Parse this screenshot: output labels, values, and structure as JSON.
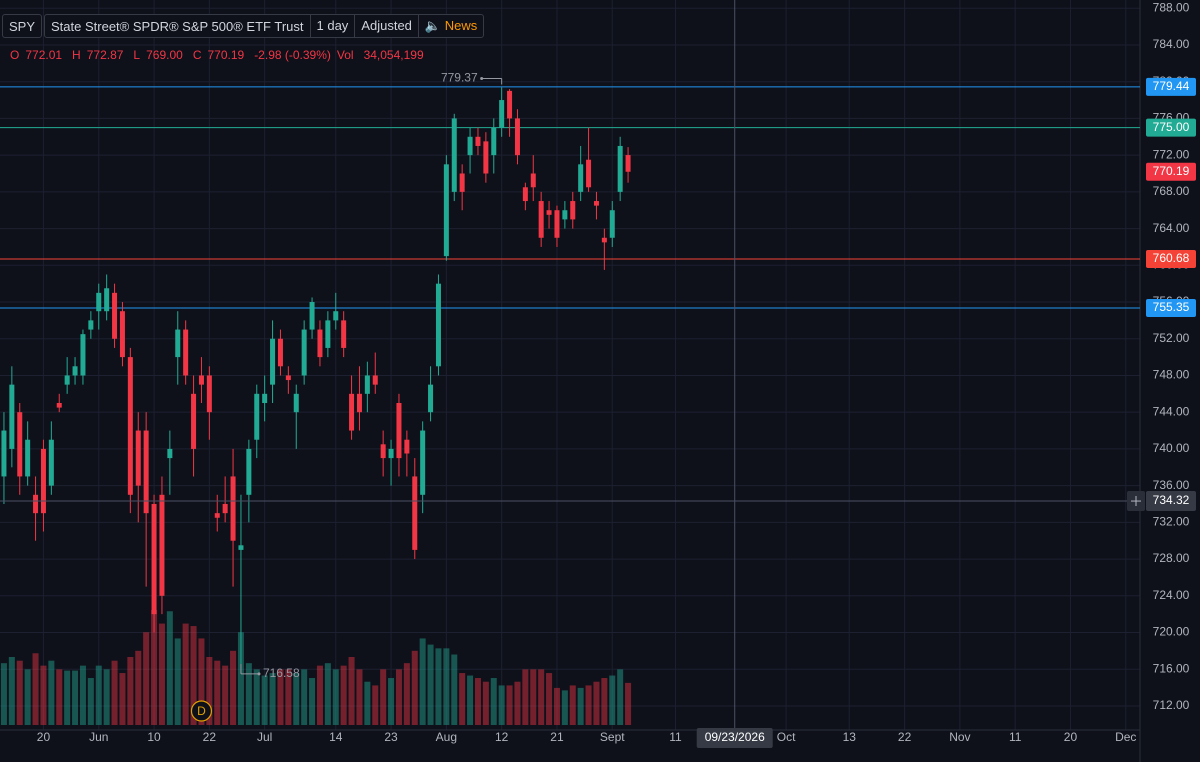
{
  "chart_data": {
    "type": "candlestick",
    "header": {
      "symbol": "SPY",
      "name": "State Street® SPDR® S&P 500® ETF Trust",
      "interval": "1 day",
      "adjustment": "Adjusted",
      "news": "News",
      "legend": [
        "O",
        "772.01",
        "H",
        "772.87",
        "L",
        "769.00",
        "C",
        "770.19",
        "-2.98 (-0.39%)",
        "Vol",
        "34,054,199"
      ]
    },
    "x": [
      0,
      1,
      2,
      3,
      4,
      5,
      6,
      7,
      8,
      9,
      10,
      11,
      12,
      13,
      14,
      15,
      16,
      17,
      18,
      19,
      20,
      21,
      22,
      23,
      24,
      25,
      26,
      27,
      28,
      29,
      30,
      31,
      32,
      33,
      34,
      35,
      36,
      37,
      38,
      39,
      40,
      41,
      42,
      43,
      44,
      45,
      46,
      47,
      48,
      49,
      50,
      51,
      52,
      53,
      54,
      55,
      56,
      57,
      58,
      59,
      60,
      61,
      62,
      63,
      64,
      65,
      66,
      67,
      68,
      69,
      70,
      71,
      72,
      73,
      74,
      75,
      76,
      77,
      78,
      79
    ],
    "open": [
      737,
      740,
      744,
      737,
      735,
      740,
      736,
      745,
      747,
      748,
      748,
      753,
      755,
      755,
      757,
      755,
      750,
      742,
      742,
      734,
      735,
      739,
      750,
      753,
      746,
      748,
      748,
      733,
      734,
      737,
      729,
      735,
      741,
      745,
      747,
      752,
      748,
      744,
      748,
      753,
      753,
      751,
      754,
      754,
      746,
      746,
      746,
      748,
      740.5,
      739,
      745,
      741,
      737,
      735,
      744,
      749,
      761,
      768,
      770,
      772,
      774,
      773.5,
      772,
      775,
      779,
      776,
      768.5,
      770,
      767,
      766,
      766,
      765,
      767,
      768,
      771.5,
      767,
      763,
      763,
      768,
      772.01
    ],
    "high": [
      744,
      749,
      745,
      743,
      737,
      741,
      743,
      746,
      750,
      750,
      753,
      755,
      758,
      759,
      758,
      756,
      751,
      744,
      744,
      735,
      737,
      742,
      755,
      754,
      748,
      750,
      749,
      735,
      737,
      740,
      735,
      741,
      747,
      748,
      754,
      753,
      749,
      747,
      754,
      756.5,
      754,
      755,
      757,
      755,
      748,
      749,
      749.5,
      750.5,
      742,
      741,
      746,
      742,
      739,
      743,
      749,
      759,
      772,
      776.5,
      771,
      775,
      775,
      774.5,
      776,
      779.37,
      779.2,
      777,
      769,
      772,
      768,
      767,
      766.5,
      767,
      768,
      773,
      775,
      768,
      764,
      767,
      774,
      772.87
    ],
    "low": [
      734,
      738,
      735,
      736,
      730,
      731,
      735,
      744,
      746,
      747,
      747,
      752,
      753,
      754,
      751,
      749,
      733,
      732,
      725,
      720,
      722,
      735,
      747,
      747,
      737,
      745,
      741,
      731,
      732,
      725,
      716.58,
      732,
      739,
      743,
      745,
      748,
      746,
      740,
      747,
      752,
      749,
      750,
      753,
      750,
      741,
      742,
      744,
      746,
      737,
      736,
      737,
      737,
      728,
      733,
      743,
      748,
      760.5,
      767,
      766,
      770,
      772,
      769,
      770,
      774,
      774,
      771,
      766,
      767,
      762,
      764,
      762,
      764,
      764,
      767,
      768,
      765,
      759.5,
      762,
      767,
      769
    ],
    "close": [
      742,
      747,
      737,
      741,
      733,
      733,
      741,
      744.5,
      748,
      749,
      752.5,
      754,
      757,
      757.5,
      752,
      750,
      735,
      736,
      733,
      722,
      724,
      740,
      753,
      748,
      740,
      747,
      744,
      732.5,
      733,
      730,
      729.5,
      740,
      746,
      746,
      752,
      749,
      747.5,
      746,
      753,
      756,
      750,
      754,
      755,
      751,
      742,
      744,
      748,
      747,
      739,
      740,
      739,
      739.5,
      729,
      742,
      747,
      758,
      771,
      776,
      768,
      774,
      773,
      770,
      775,
      778,
      776,
      772,
      767,
      768.5,
      763,
      765.5,
      763,
      766,
      765,
      771,
      768.5,
      766.5,
      762.5,
      766,
      773,
      770.19
    ],
    "volume": [
      50000000,
      55000000,
      52000000,
      45000000,
      58000000,
      48000000,
      52000000,
      45000000,
      44000000,
      44000000,
      48000000,
      38000000,
      48000000,
      45000000,
      52000000,
      42000000,
      55000000,
      60000000,
      75000000,
      93000000,
      82000000,
      92000000,
      70000000,
      82000000,
      80000000,
      70000000,
      55000000,
      52000000,
      48000000,
      60000000,
      75000000,
      50000000,
      45000000,
      40000000,
      42000000,
      45000000,
      45000000,
      42000000,
      45000000,
      38000000,
      48000000,
      50000000,
      45000000,
      48000000,
      55000000,
      45000000,
      35000000,
      32000000,
      45000000,
      38000000,
      45000000,
      50000000,
      60000000,
      70000000,
      65000000,
      62000000,
      62000000,
      57000000,
      42000000,
      40000000,
      38000000,
      35000000,
      38000000,
      32000000,
      32000000,
      35000000,
      45000000,
      45000000,
      45000000,
      42000000,
      30000000,
      28000000,
      32000000,
      30000000,
      32000000,
      35000000,
      38000000,
      40000000,
      45000000,
      34054199
    ],
    "up_color": "#22ab94",
    "down_color": "#f23645",
    "xlim": [
      -0.5,
      143.8
    ],
    "ylim": [
      709.38,
      788.9
    ],
    "xticks": [
      {
        "value": 5,
        "label": "20"
      },
      {
        "value": 12,
        "label": "Jun"
      },
      {
        "value": 19,
        "label": "10"
      },
      {
        "value": 26,
        "label": "22"
      },
      {
        "value": 33,
        "label": "Jul"
      },
      {
        "value": 42,
        "label": "14"
      },
      {
        "value": 49,
        "label": "23"
      },
      {
        "value": 56,
        "label": "Aug"
      },
      {
        "value": 63,
        "label": "12"
      },
      {
        "value": 70,
        "label": "21"
      },
      {
        "value": 77,
        "label": "Sept"
      },
      {
        "value": 85,
        "label": "11"
      },
      {
        "value": 99,
        "label": "Oct"
      },
      {
        "value": 107,
        "label": "13"
      },
      {
        "value": 114,
        "label": "22"
      },
      {
        "value": 121,
        "label": "Nov"
      },
      {
        "value": 128,
        "label": "11"
      },
      {
        "value": 135,
        "label": "20"
      },
      {
        "value": 142,
        "label": "Dec"
      }
    ],
    "yticks": [
      {
        "value": 712,
        "label": "712.00"
      },
      {
        "value": 716,
        "label": "716.00"
      },
      {
        "value": 720,
        "label": "720.00"
      },
      {
        "value": 724,
        "label": "724.00"
      },
      {
        "value": 728,
        "label": "728.00"
      },
      {
        "value": 732,
        "label": "732.00"
      },
      {
        "value": 736,
        "label": "736.00"
      },
      {
        "value": 740,
        "label": "740.00"
      },
      {
        "value": 744,
        "label": "744.00"
      },
      {
        "value": 748,
        "label": "748.00"
      },
      {
        "value": 752,
        "label": "752.00"
      },
      {
        "value": 756,
        "label": "756.00"
      },
      {
        "value": 760,
        "label": "760.00"
      },
      {
        "value": 764,
        "label": "764.00"
      },
      {
        "value": 768,
        "label": "768.00"
      },
      {
        "value": 772,
        "label": "772.00"
      },
      {
        "value": 776,
        "label": "776.00"
      },
      {
        "value": 780,
        "label": "780.00"
      },
      {
        "value": 784,
        "label": "784.00"
      },
      {
        "value": 788,
        "label": "788.00"
      }
    ],
    "grid": true,
    "levels": [
      {
        "value": 779.44,
        "color": "#2196f3",
        "line": true
      },
      {
        "value": 775,
        "label": "775.00",
        "color": "#22ab94",
        "line": true
      },
      {
        "value": 770.19,
        "color": "#f23645",
        "line": false
      },
      {
        "value": 760.68,
        "color": "#f44336",
        "line": true
      },
      {
        "value": 755.35,
        "color": "#2196f3",
        "line": true
      }
    ],
    "high_marker": {
      "x": 63,
      "value": 779.37
    },
    "low_marker": {
      "x": 30,
      "value": 716.58
    },
    "dividend_marker": {
      "x": 25,
      "label": "D"
    },
    "crosshair": {
      "x": 92.5,
      "x_label": "09/23/2026",
      "y": 734.32
    }
  }
}
